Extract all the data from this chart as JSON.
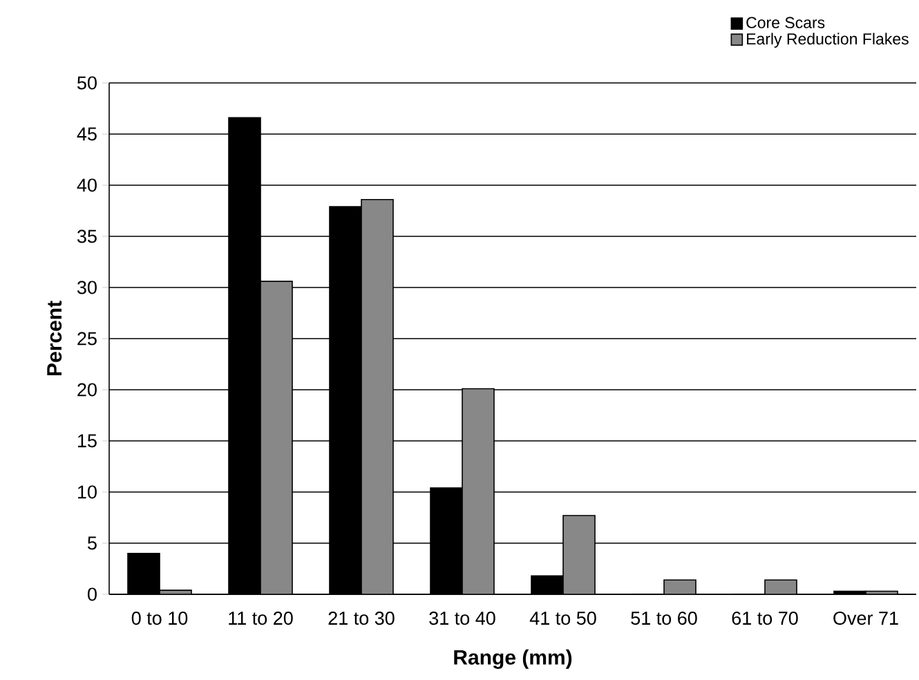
{
  "chart_data": {
    "type": "bar",
    "xlabel": "Range (mm)",
    "ylabel": "Percent",
    "categories": [
      "0 to 10",
      "11 to 20",
      "21 to 30",
      "31 to 40",
      "41 to 50",
      "51 to 60",
      "61 to 70",
      "Over 71"
    ],
    "series": [
      {
        "name": "Core Scars",
        "color": "#000000",
        "values": [
          4.0,
          46.6,
          37.9,
          10.4,
          1.8,
          0,
          0,
          0.3
        ]
      },
      {
        "name": "Early Reduction Flakes",
        "color": "#888888",
        "values": [
          0.4,
          30.6,
          38.6,
          20.1,
          7.7,
          1.4,
          1.4,
          0.3
        ]
      }
    ],
    "ylim": [
      0,
      50
    ],
    "yticks": [
      0,
      5,
      10,
      15,
      20,
      25,
      30,
      35,
      40,
      45,
      50
    ],
    "grid": "y",
    "legend": "top right"
  }
}
